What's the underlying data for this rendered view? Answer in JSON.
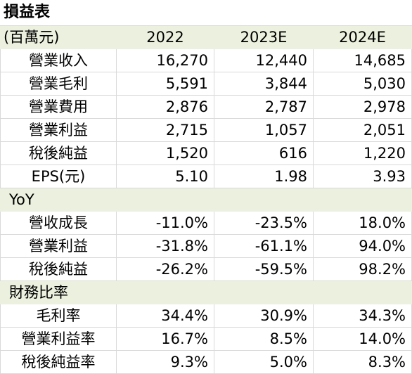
{
  "title": "損益表",
  "header": {
    "unit": "(百萬元)",
    "years": [
      "2022",
      "2023E",
      "2024E"
    ]
  },
  "income": {
    "rows": [
      {
        "label": "營業收入",
        "values": [
          "16,270",
          "12,440",
          "14,685"
        ]
      },
      {
        "label": "營業毛利",
        "values": [
          "5,591",
          "3,844",
          "5,030"
        ]
      },
      {
        "label": "營業費用",
        "values": [
          "2,876",
          "2,787",
          "2,978"
        ]
      },
      {
        "label": "營業利益",
        "values": [
          "2,715",
          "1,057",
          "2,051"
        ]
      },
      {
        "label": "稅後純益",
        "values": [
          "1,520",
          "616",
          "1,220"
        ]
      },
      {
        "label": "EPS(元)",
        "values": [
          "5.10",
          "1.98",
          "3.93"
        ]
      }
    ]
  },
  "yoy": {
    "label": "YoY",
    "rows": [
      {
        "label": "營收成長",
        "values": [
          "-11.0%",
          "-23.5%",
          "18.0%"
        ]
      },
      {
        "label": "營業利益",
        "values": [
          "-31.8%",
          "-61.1%",
          "94.0%"
        ]
      },
      {
        "label": "稅後純益",
        "values": [
          "-26.2%",
          "-59.5%",
          "98.2%"
        ]
      }
    ]
  },
  "ratios": {
    "label": "財務比率",
    "rows": [
      {
        "label": "毛利率",
        "values": [
          "34.4%",
          "30.9%",
          "34.3%"
        ]
      },
      {
        "label": "營業利益率",
        "values": [
          "16.7%",
          "8.5%",
          "14.0%"
        ]
      },
      {
        "label": "稅後純益率",
        "values": [
          "9.3%",
          "5.0%",
          "8.3%"
        ]
      }
    ]
  },
  "colors": {
    "header_bg": "#ebf1de",
    "grid": "#d9d9d9"
  }
}
